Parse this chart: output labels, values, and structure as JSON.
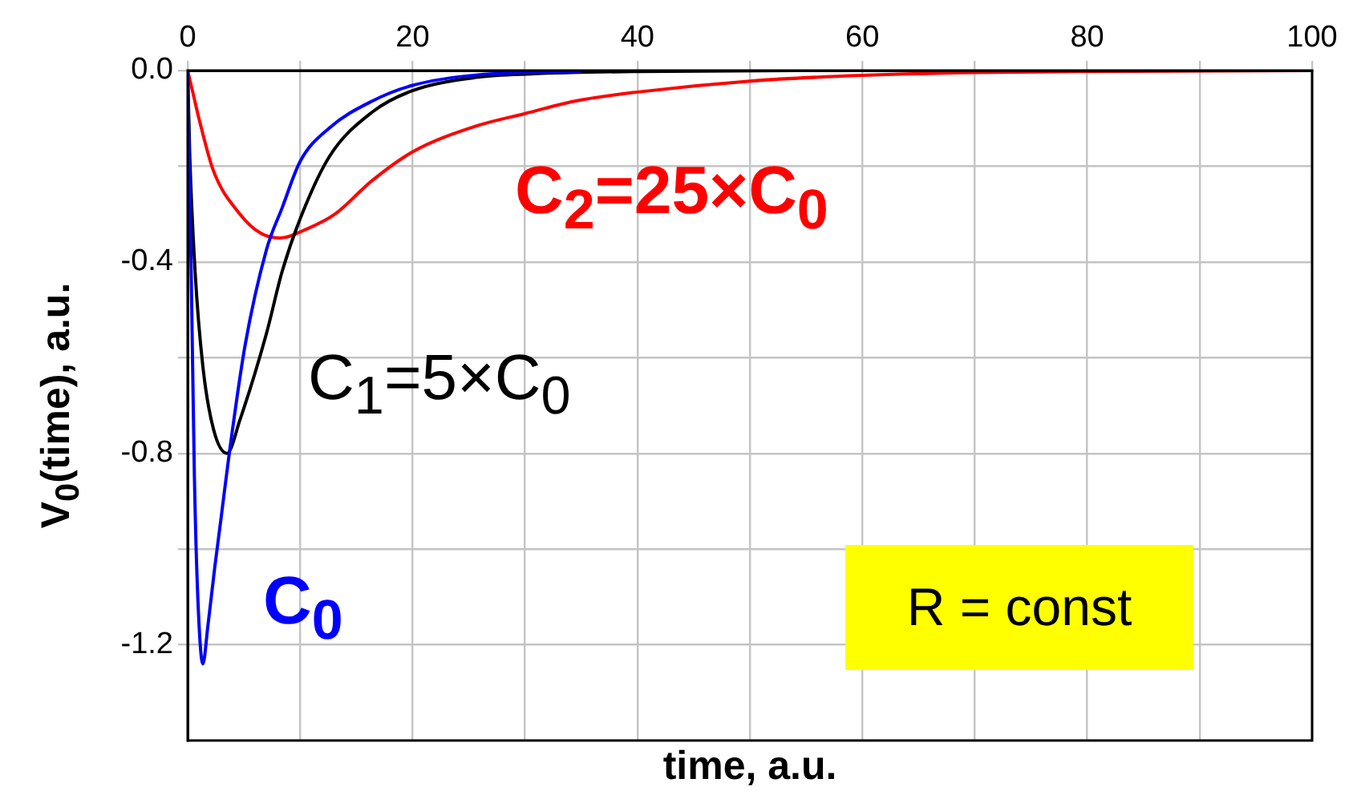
{
  "chart_data": {
    "type": "line",
    "xlabel": "time, a.u.",
    "ylabel": "V$_{0}$(time), a.u.",
    "xlim": [
      0,
      100
    ],
    "xticks": [
      0,
      {
        "value": 10,
        "label": null
      },
      20,
      {
        "value": 30,
        "label": null
      },
      40,
      {
        "value": 50,
        "label": null
      },
      60,
      {
        "value": 70,
        "label": null
      },
      80,
      {
        "value": 90,
        "label": null
      },
      100
    ],
    "ylim": [
      -1.4,
      0
    ],
    "yticks": [
      {
        "value": 0,
        "label": "0.0"
      },
      {
        "value": -0.2,
        "label": null
      },
      -0.4,
      {
        "value": -0.6,
        "label": null
      },
      -0.8,
      {
        "value": -1.0,
        "label": null
      },
      -1.2
    ],
    "grid": true,
    "marker": "none",
    "line_style": "solid",
    "annotations": [
      "R = const"
    ],
    "series": [
      {
        "name": "C$_{0}$",
        "color": "#0000ff",
        "x": [
          0,
          0.3,
          0.6,
          0.9,
          1.35,
          1.8,
          2.4,
          3,
          3.7,
          5.1,
          7,
          8.4,
          10,
          12.6,
          16.4,
          20,
          25.8,
          35
        ],
        "values": [
          0,
          -0.4,
          -0.85,
          -1.1,
          -1.24,
          -1.16,
          -1.04,
          -0.93,
          -0.8,
          -0.575,
          -0.375,
          -0.287,
          -0.19,
          -0.12,
          -0.064,
          -0.031,
          -0.009,
          -0.002
        ]
      },
      {
        "name": "C$_{1}$=5×C$_{0}$",
        "color": "#000000",
        "x": [
          0,
          0.19,
          0.66,
          1.36,
          2.3,
          3.5,
          4.65,
          7,
          8.4,
          10,
          12.6,
          16.4,
          20,
          25.8,
          30.5,
          40,
          60,
          100
        ],
        "values": [
          0,
          -0.18,
          -0.42,
          -0.62,
          -0.75,
          -0.8,
          -0.73,
          -0.55,
          -0.42,
          -0.31,
          -0.18,
          -0.087,
          -0.042,
          -0.014,
          -0.007,
          -0.002,
          0,
          0
        ]
      },
      {
        "name": "C$_{2}$=25×C$_{0}$",
        "color": "#ff0000",
        "x": [
          0,
          0.5,
          1,
          2.3,
          4.65,
          6.5,
          8.2,
          10.7,
          13.1,
          16.4,
          20,
          25.8,
          30,
          34.4,
          40,
          50,
          60,
          70,
          80,
          100
        ],
        "values": [
          0,
          -0.05,
          -0.1,
          -0.21,
          -0.3,
          -0.34,
          -0.35,
          -0.33,
          -0.3,
          -0.23,
          -0.17,
          -0.115,
          -0.09,
          -0.064,
          -0.045,
          -0.022,
          -0.01,
          -0.004,
          -0.002,
          0
        ]
      }
    ]
  }
}
